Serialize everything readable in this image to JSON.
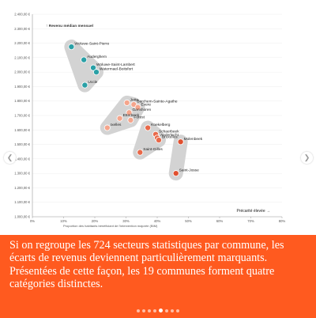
{
  "chart_data": {
    "type": "scatter",
    "ylabel": "↑ Revenu médian mensuel",
    "xlabel": "Proportion des habitants bénéficiant de l'intervention majorée (BIM)",
    "corner_label": "Précarité élevée →",
    "xlim": [
      0,
      80
    ],
    "ylim": [
      1000,
      2400
    ],
    "xticks": [
      "0%",
      "10%",
      "20%",
      "30%",
      "40%",
      "50%",
      "60%",
      "70%",
      "80%"
    ],
    "yticks": [
      "1.000,00 €",
      "1.100,00 €",
      "1.200,00 €",
      "1.300,00 €",
      "1.400,00 €",
      "1.500,00 €",
      "1.600,00 €",
      "1.700,00 €",
      "1.800,00 €",
      "1.900,00 €",
      "2.000,00 €",
      "2.100,00 €",
      "2.200,00 €",
      "2.300,00 €",
      "2.400,00 €"
    ],
    "groups": [
      {
        "color": "#2aa0a6",
        "points": [
          {
            "label": "Woluwe-Saint-Pierre",
            "x": 12.5,
            "y": 2175
          },
          {
            "label": "Auderghem",
            "x": 16.5,
            "y": 2085
          },
          {
            "label": "Woluwe-Saint-Lambert",
            "x": 19.5,
            "y": 2030
          },
          {
            "label": "Watermael-Boitsfort",
            "x": 20.5,
            "y": 2000
          },
          {
            "label": "Uccle",
            "x": 16.8,
            "y": 1910
          }
        ]
      },
      {
        "color": "#f5a58c",
        "points": [
          {
            "label": "Jette",
            "x": 30.3,
            "y": 1788
          },
          {
            "label": "Berchem-Sainte-Agathe",
            "x": 32.5,
            "y": 1776
          },
          {
            "label": "Evere",
            "x": 33.8,
            "y": 1756
          },
          {
            "label": "Ganshoren",
            "x": 31.0,
            "y": 1720
          },
          {
            "label": "Etterbeek",
            "x": 28.0,
            "y": 1680
          },
          {
            "label": "Forest",
            "x": 31.5,
            "y": 1668
          },
          {
            "label": "Ixelles",
            "x": 24.0,
            "y": 1615
          }
        ]
      },
      {
        "color": "#e8694a",
        "points": [
          {
            "label": "Koekelberg",
            "x": 37.0,
            "y": 1615
          },
          {
            "label": "Schaerbeek",
            "x": 39.5,
            "y": 1570
          },
          {
            "label": "Anderlecht",
            "x": 40.0,
            "y": 1545
          },
          {
            "label": "Bruxelles",
            "x": 40.5,
            "y": 1530
          },
          {
            "label": "Saint-Gilles",
            "x": 34.5,
            "y": 1445
          }
        ]
      },
      {
        "color": "#e0502f",
        "points": [
          {
            "label": "Molenbeek",
            "x": 47.5,
            "y": 1518
          },
          {
            "label": "Saint-Josse",
            "x": 46.0,
            "y": 1300
          }
        ]
      }
    ]
  },
  "caption": {
    "line1": "Si on regroupe les 724 secteurs statistiques par commune, les écarts de revenus deviennent particulièrement marquants.",
    "line2": "Présentées de cette façon, les 19 communes forment quatre catégories distinctes."
  },
  "carousel": {
    "count": 8,
    "active_index": 4
  },
  "icons": {
    "prev": "chevron-left-icon",
    "next": "chevron-right-icon"
  }
}
